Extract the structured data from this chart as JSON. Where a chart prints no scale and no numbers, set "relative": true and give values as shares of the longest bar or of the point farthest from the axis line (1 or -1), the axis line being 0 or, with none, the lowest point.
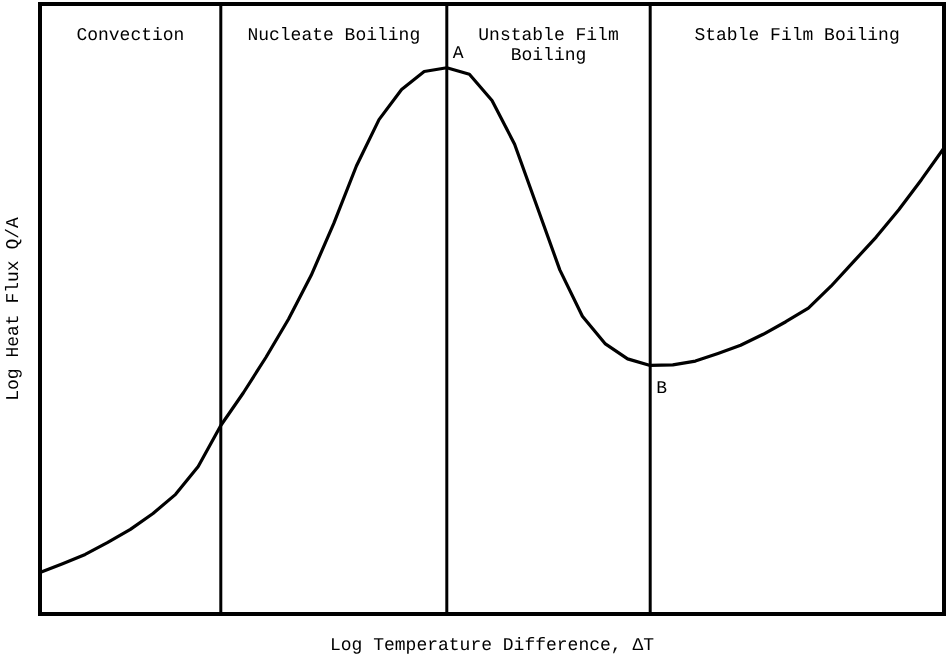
{
  "chart_data": {
    "type": "line",
    "relative": true,
    "xlabel": "Log Temperature Difference, ΔT",
    "ylabel": "Log Heat Flux Q/A",
    "marker": "none",
    "grid": "x",
    "line_style": "solid",
    "categories": [
      null,
      null,
      null,
      null,
      null,
      null,
      null,
      null,
      null,
      null,
      null,
      null,
      null,
      null,
      null,
      null,
      null,
      null,
      null,
      null,
      null,
      null,
      null,
      null,
      null,
      null,
      null,
      null,
      null,
      null,
      null,
      null,
      null,
      null,
      null,
      null,
      null,
      null,
      null,
      null,
      null
    ],
    "series": [
      {
        "color": "#000000",
        "values": [
          0.076,
          0.092,
          0.109,
          0.131,
          0.155,
          0.184,
          0.219,
          0.27,
          0.345,
          0.405,
          0.47,
          0.54,
          0.62,
          0.715,
          0.82,
          0.905,
          0.96,
          0.993,
          1,
          0.988,
          0.94,
          0.86,
          0.745,
          0.63,
          0.545,
          0.495,
          0.467,
          0.455,
          0.456,
          0.463,
          0.477,
          0.492,
          0.512,
          0.535,
          0.56,
          0.6,
          0.645,
          0.69,
          0.74,
          0.795,
          0.853
        ]
      }
    ],
    "annotations": [
      "Convection",
      "Nucleate Boiling",
      "Unstable Film Boiling",
      "Stable Film Boiling",
      "A",
      "B"
    ]
  }
}
